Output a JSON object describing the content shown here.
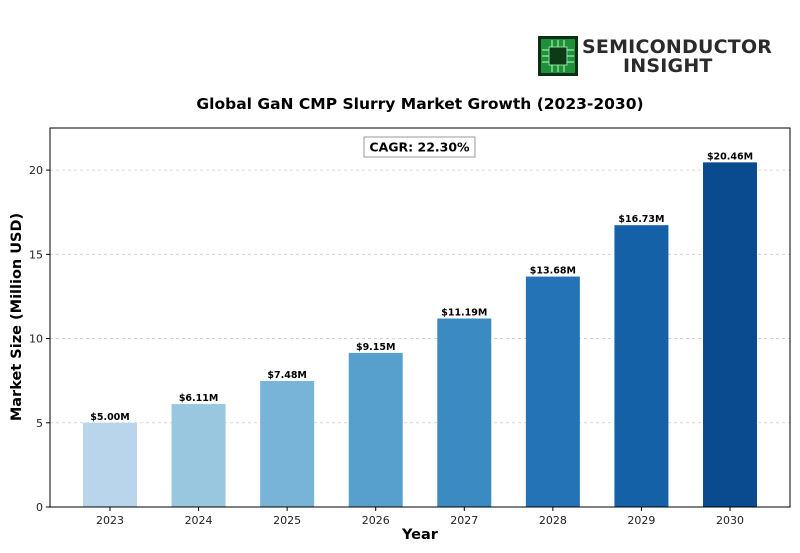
{
  "logo": {
    "line1": "SEMICONDUCTOR",
    "line2": "INSIGHT"
  },
  "chart_data": {
    "type": "bar",
    "title": "Global GaN CMP Slurry Market Growth (2023-2030)",
    "xlabel": "Year",
    "ylabel": "Market Size (Million USD)",
    "categories": [
      "2023",
      "2024",
      "2025",
      "2026",
      "2027",
      "2028",
      "2029",
      "2030"
    ],
    "values": [
      5.0,
      6.11,
      7.48,
      9.15,
      11.19,
      13.68,
      16.73,
      20.46
    ],
    "value_labels": [
      "$5.00M",
      "$6.11M",
      "$7.48M",
      "$9.15M",
      "$11.19M",
      "$13.68M",
      "$16.73M",
      "$20.46M"
    ],
    "ylim": [
      0,
      22.5
    ],
    "yticks": [
      0,
      5,
      10,
      15,
      20
    ],
    "grid": true,
    "annotation": "CAGR: 22.30%",
    "colors": [
      "#b8d5eb",
      "#9ac7e0",
      "#78b4d8",
      "#57a0ce",
      "#3b8bc2",
      "#2473b6",
      "#1461a8",
      "#0a4a8e"
    ]
  }
}
